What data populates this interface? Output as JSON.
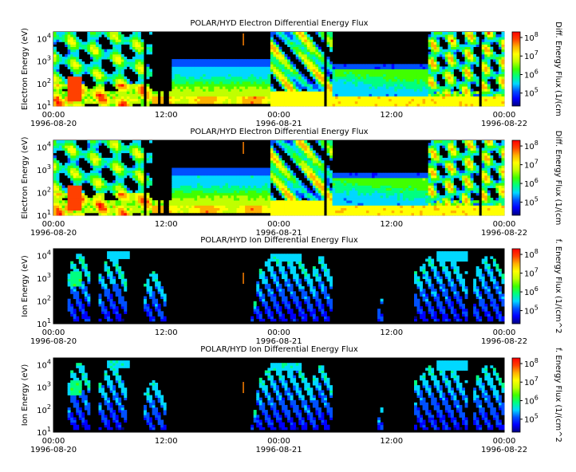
{
  "chart_data": [
    {
      "type": "heatmap",
      "title": "POLAR/HYD  Electron Differential Energy Flux",
      "ylabel": "Electron Energy (eV)",
      "colorbar_label": "Diff. Energy Flux (1/(cm",
      "yscale": "log",
      "ylim": [
        10,
        20000
      ],
      "y_ticks": [
        "10",
        "10",
        "10",
        "10"
      ],
      "y_tick_exponents": [
        "1",
        "2",
        "3",
        "4"
      ],
      "x_ticks": [
        {
          "time": "00:00",
          "date": "1996-08-20"
        },
        {
          "time": "12:00",
          "date": ""
        },
        {
          "time": "00:00",
          "date": "1996-08-21"
        },
        {
          "time": "12:00",
          "date": ""
        },
        {
          "time": "00:00",
          "date": "1996-08-22"
        }
      ],
      "colorbar_ticks": [
        "10",
        "10",
        "10",
        "10"
      ],
      "colorbar_tick_exponents": [
        "5",
        "6",
        "7",
        "8"
      ],
      "clim": [
        20000,
        200000000
      ]
    },
    {
      "type": "heatmap",
      "title": "POLAR/HYD  Electron Differential Energy Flux",
      "ylabel": "Electron Energy (eV)",
      "colorbar_label": "Diff. Energy Flux (1/(cm",
      "yscale": "log",
      "ylim": [
        10,
        20000
      ],
      "y_ticks": [
        "10",
        "10",
        "10",
        "10"
      ],
      "y_tick_exponents": [
        "1",
        "2",
        "3",
        "4"
      ],
      "x_ticks": [
        {
          "time": "00:00",
          "date": "1996-08-20"
        },
        {
          "time": "12:00",
          "date": ""
        },
        {
          "time": "00:00",
          "date": "1996-08-21"
        },
        {
          "time": "12:00",
          "date": ""
        },
        {
          "time": "00:00",
          "date": "1996-08-22"
        }
      ],
      "colorbar_ticks": [
        "10",
        "10",
        "10",
        "10"
      ],
      "colorbar_tick_exponents": [
        "5",
        "6",
        "7",
        "8"
      ],
      "clim": [
        20000,
        200000000
      ]
    },
    {
      "type": "heatmap",
      "title": "POLAR/HYD  Ion Differential Energy Flux",
      "ylabel": "Ion Energy (eV)",
      "colorbar_label": "f. Energy Flux (1/(cm^2",
      "yscale": "log",
      "ylim": [
        10,
        20000
      ],
      "y_ticks": [
        "10",
        "10",
        "10",
        "10"
      ],
      "y_tick_exponents": [
        "1",
        "2",
        "3",
        "4"
      ],
      "x_ticks": [
        {
          "time": "00:00",
          "date": "1996-08-20"
        },
        {
          "time": "12:00",
          "date": ""
        },
        {
          "time": "00:00",
          "date": "1996-08-21"
        },
        {
          "time": "12:00",
          "date": ""
        },
        {
          "time": "00:00",
          "date": "1996-08-22"
        }
      ],
      "colorbar_ticks": [
        "10",
        "10",
        "10",
        "10"
      ],
      "colorbar_tick_exponents": [
        "5",
        "6",
        "7",
        "8"
      ],
      "clim": [
        20000,
        200000000
      ]
    },
    {
      "type": "heatmap",
      "title": "POLAR/HYD  Ion Differential Energy Flux",
      "ylabel": "Ion Energy (eV)",
      "colorbar_label": "f. Energy Flux (1/(cm^2",
      "yscale": "log",
      "ylim": [
        10,
        20000
      ],
      "y_ticks": [
        "10",
        "10",
        "10",
        "10"
      ],
      "y_tick_exponents": [
        "1",
        "2",
        "3",
        "4"
      ],
      "x_ticks": [
        {
          "time": "00:00",
          "date": "1996-08-20"
        },
        {
          "time": "12:00",
          "date": ""
        },
        {
          "time": "00:00",
          "date": "1996-08-21"
        },
        {
          "time": "12:00",
          "date": ""
        },
        {
          "time": "00:00",
          "date": "1996-08-22"
        }
      ],
      "colorbar_ticks": [
        "10",
        "10",
        "10",
        "10"
      ],
      "colorbar_tick_exponents": [
        "5",
        "6",
        "7",
        "8"
      ],
      "clim": [
        20000,
        200000000
      ]
    }
  ],
  "colors": {
    "background": "#000000",
    "colormap": [
      "#000080",
      "#0000ff",
      "#0050ff",
      "#00d8ff",
      "#00ff80",
      "#40ff00",
      "#c0ff00",
      "#ffff00",
      "#ffb000",
      "#ff4000",
      "#ff0000"
    ]
  }
}
